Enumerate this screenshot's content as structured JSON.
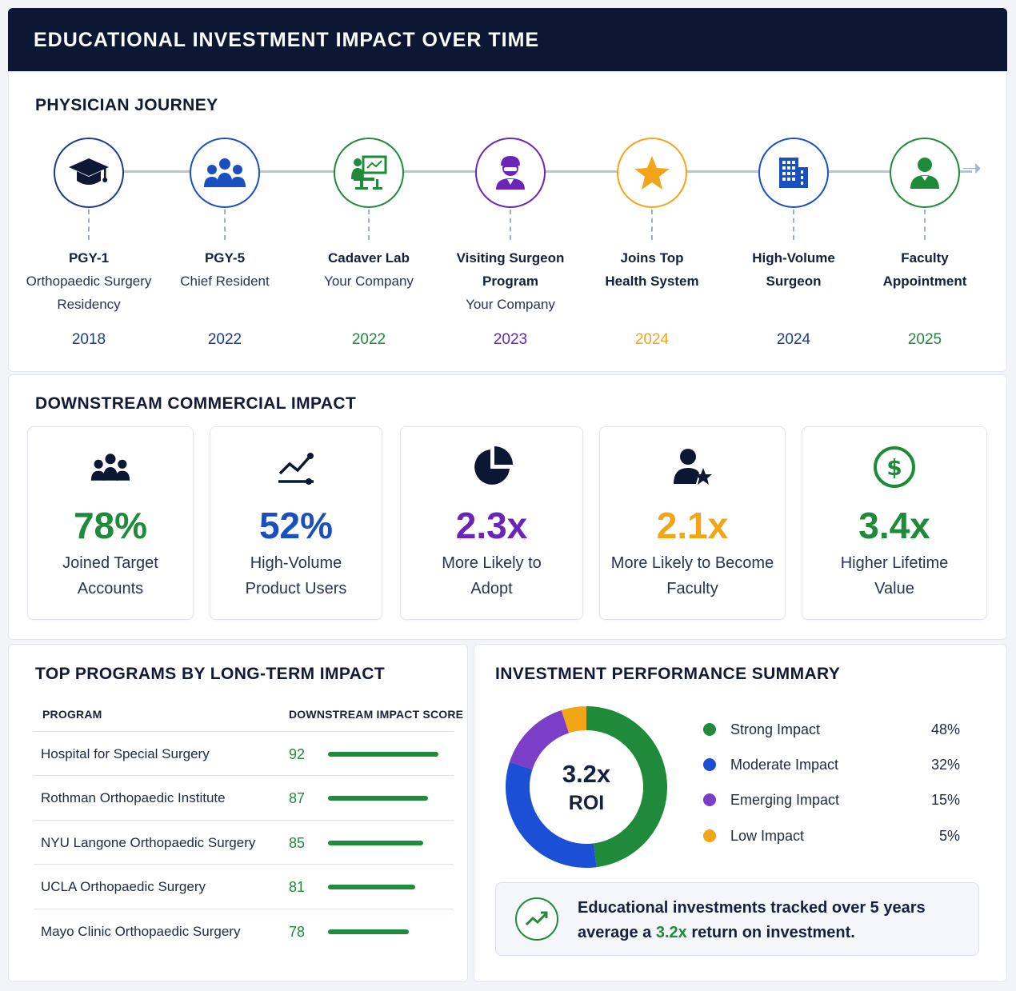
{
  "header": {
    "title": "EDUCATIONAL INVESTMENT IMPACT OVER TIME"
  },
  "journey": {
    "title": "PHYSICIAN JOURNEY",
    "steps": [
      {
        "title": "PGY-1",
        "sub1": "Orthopaedic Surgery",
        "sub2": "Residency",
        "year": "2018",
        "color": "#1a3a8a",
        "icon": "graduation-cap-icon"
      },
      {
        "title": "PGY-5",
        "sub1": "Chief Resident",
        "year": "2022",
        "color": "#1a4fbf",
        "icon": "group-icon"
      },
      {
        "title": "Cadaver Lab",
        "sub1": "Your Company",
        "year": "2022",
        "color": "#1e8a3a",
        "icon": "lab-presentation-icon"
      },
      {
        "title": "Visiting Surgeon",
        "title2": "Program",
        "sub1": "Your Company",
        "year": "2023",
        "color": "#6a25b8",
        "icon": "surgeon-icon"
      },
      {
        "title": "Joins Top",
        "title2": "Health System",
        "year": "2024",
        "color": "#f2a516",
        "icon": "star-icon"
      },
      {
        "title": "High-Volume",
        "title2": "Surgeon",
        "year": "2024",
        "color": "#1a4fbf",
        "icon": "building-icon"
      },
      {
        "title": "Faculty",
        "title2": "Appointment",
        "year": "2025",
        "color": "#1e8a3a",
        "icon": "person-icon"
      }
    ]
  },
  "impact": {
    "title": "DOWNSTREAM COMMERCIAL IMPACT",
    "metrics": [
      {
        "value": "78%",
        "label1": "Joined Target",
        "label2": "Accounts",
        "color": "#1e8a3a",
        "icon": "group-icon"
      },
      {
        "value": "52%",
        "label1": "High-Volume",
        "label2": "Product Users",
        "color": "#1a4fbf",
        "icon": "trend-chart-icon"
      },
      {
        "value": "2.3x",
        "label1": "More Likely to",
        "label2": "Adopt",
        "color": "#6a25b8",
        "icon": "pie-chart-icon"
      },
      {
        "value": "2.1x",
        "label1": "More Likely to Become",
        "label2": "Faculty",
        "color": "#f2a516",
        "icon": "user-star-icon"
      },
      {
        "value": "3.4x",
        "label1": "Higher Lifetime",
        "label2": "Value",
        "color": "#1e8a3a",
        "icon": "dollar-circle-icon"
      }
    ]
  },
  "programs": {
    "title": "TOP PROGRAMS BY LONG-TERM IMPACT",
    "col_program": "PROGRAM",
    "col_score": "DOWNSTREAM IMPACT SCORE",
    "rows": [
      {
        "name": "Hospital for Special Surgery",
        "score": "92",
        "value": 92
      },
      {
        "name": "Rothman Orthopaedic Institute",
        "score": "87",
        "value": 87
      },
      {
        "name": "NYU Langone Orthopaedic Surgery",
        "score": "85",
        "value": 85
      },
      {
        "name": "UCLA Orthopaedic Surgery",
        "score": "81",
        "value": 81
      },
      {
        "name": "Mayo Clinic Orthopaedic Surgery",
        "score": "78",
        "value": 78
      }
    ]
  },
  "summary": {
    "title": "INVESTMENT PERFORMANCE SUMMARY",
    "roi_value": "3.2x",
    "roi_label": "ROI",
    "legend": [
      {
        "label": "Strong Impact",
        "pct": "48%",
        "value": 48,
        "color": "#1e8a3a"
      },
      {
        "label": "Moderate Impact",
        "pct": "32%",
        "value": 32,
        "color": "#1a4fd6"
      },
      {
        "label": "Emerging Impact",
        "pct": "15%",
        "value": 15,
        "color": "#7a3ec8"
      },
      {
        "label": "Low Impact",
        "pct": "5%",
        "value": 5,
        "color": "#f2a516"
      }
    ],
    "callout_line1": "Educational investments tracked over 5 years",
    "callout_pre": "average a ",
    "callout_highlight": "3.2x",
    "callout_post": " return on investment.",
    "callout_icon": "trend-up-icon"
  }
}
